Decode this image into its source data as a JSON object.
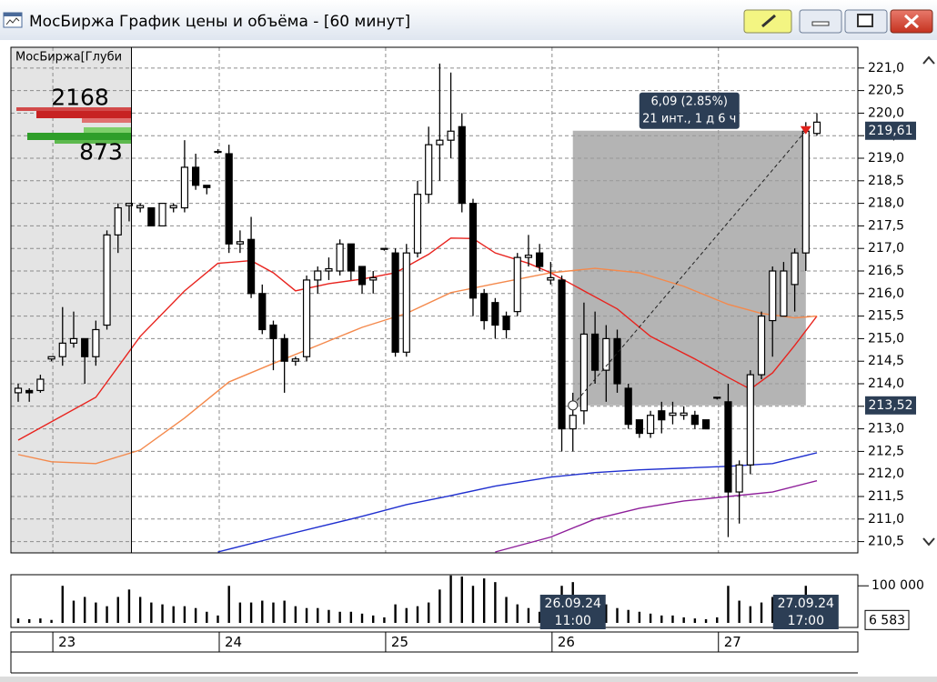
{
  "window": {
    "title": "МосБиржа График цены и объёма - [60 минут]"
  },
  "depth_panel": {
    "title": "МосБиржа[Глуби",
    "ask_volume": 2168,
    "bid_volume": 873
  },
  "chart_data": [
    {
      "type": "candlestick",
      "categories": [
        null,
        null,
        null,
        "23",
        null,
        null,
        null,
        null,
        null,
        null,
        null,
        null,
        null,
        null,
        null,
        null,
        null,
        null,
        "24",
        null,
        null,
        null,
        null,
        null,
        null,
        null,
        null,
        null,
        null,
        null,
        null,
        null,
        null,
        "25",
        null,
        null,
        null,
        null,
        null,
        null,
        null,
        null,
        null,
        null,
        null,
        null,
        null,
        null,
        "26",
        null,
        null,
        null,
        null,
        null,
        null,
        null,
        null,
        null,
        null,
        null,
        null,
        null,
        null,
        "27",
        null,
        null,
        null,
        null,
        null,
        null,
        null,
        null,
        null
      ],
      "open": [
        213.8,
        213.85,
        213.85,
        214.55,
        214.6,
        214.9,
        215.0,
        214.6,
        215.3,
        217.3,
        217.95,
        217.9,
        217.9,
        217.5,
        217.9,
        217.9,
        218.8,
        218.4,
        219.15,
        219.1,
        217.1,
        217.2,
        216.0,
        215.3,
        215.0,
        214.5,
        214.6,
        216.3,
        216.5,
        216.5,
        217.1,
        216.6,
        216.3,
        217.0,
        216.9,
        214.7,
        216.9,
        218.2,
        219.3,
        219.4,
        219.7,
        218.0,
        216.0,
        215.8,
        215.5,
        215.6,
        216.8,
        216.9,
        216.3,
        216.3,
        213.0,
        213.4,
        215.1,
        214.3,
        215.0,
        213.9,
        213.2,
        212.9,
        213.4,
        213.3,
        213.3,
        213.3,
        213.2,
        213.7,
        213.6,
        211.6,
        212.2,
        214.2,
        215.4,
        215.5,
        216.2,
        216.9,
        219.55
      ],
      "high": [
        214.0,
        213.9,
        214.2,
        214.6,
        215.7,
        215.6,
        215.0,
        215.4,
        217.4,
        218.0,
        218.0,
        218.0,
        217.9,
        218.0,
        218.0,
        219.4,
        219.1,
        218.4,
        219.2,
        219.3,
        217.4,
        217.7,
        216.2,
        215.4,
        215.1,
        214.6,
        216.4,
        216.6,
        216.8,
        217.2,
        217.1,
        216.6,
        216.5,
        217.0,
        217.0,
        217.1,
        218.5,
        219.7,
        221.1,
        220.9,
        220.0,
        218.1,
        216.1,
        215.9,
        215.6,
        216.9,
        217.3,
        217.1,
        216.7,
        216.4,
        213.8,
        215.8,
        215.6,
        215.3,
        215.2,
        214.0,
        213.2,
        213.4,
        213.6,
        213.6,
        213.5,
        213.4,
        213.2,
        213.7,
        214.0,
        212.3,
        214.3,
        215.6,
        216.6,
        216.7,
        217.0,
        219.8,
        220.0
      ],
      "low": [
        213.6,
        213.6,
        213.8,
        214.5,
        214.4,
        214.8,
        214.0,
        214.4,
        215.2,
        216.9,
        217.6,
        217.8,
        217.5,
        217.5,
        217.8,
        217.8,
        218.3,
        218.2,
        219.1,
        216.9,
        216.9,
        215.9,
        215.1,
        214.3,
        213.8,
        214.4,
        214.5,
        216.0,
        216.3,
        216.4,
        216.3,
        216.0,
        216.0,
        216.95,
        214.6,
        214.6,
        216.8,
        218.0,
        218.5,
        219.0,
        217.8,
        215.5,
        215.2,
        215.0,
        215.0,
        215.5,
        216.6,
        216.5,
        216.2,
        212.5,
        212.5,
        213.1,
        214.0,
        213.6,
        213.8,
        213.0,
        212.8,
        212.8,
        212.9,
        213.1,
        213.2,
        213.0,
        213.0,
        213.65,
        210.6,
        210.9,
        212.0,
        214.1,
        214.6,
        215.5,
        215.6,
        216.5,
        219.5
      ],
      "close": [
        213.9,
        213.8,
        214.1,
        214.6,
        214.9,
        215.0,
        214.6,
        215.2,
        217.3,
        217.9,
        218.0,
        217.95,
        217.5,
        218.0,
        217.95,
        218.8,
        218.4,
        218.35,
        219.15,
        217.1,
        217.15,
        216.0,
        215.2,
        215.0,
        214.5,
        214.55,
        216.3,
        216.5,
        216.55,
        217.1,
        216.5,
        216.2,
        216.35,
        217.0,
        214.7,
        216.9,
        218.2,
        219.3,
        219.4,
        219.6,
        218.0,
        215.9,
        215.4,
        215.3,
        215.2,
        216.8,
        216.85,
        216.6,
        216.35,
        213.0,
        213.3,
        215.1,
        214.3,
        215.0,
        214.0,
        213.1,
        212.9,
        213.3,
        213.2,
        213.35,
        213.35,
        213.1,
        213.0,
        213.7,
        211.6,
        212.2,
        214.2,
        215.5,
        216.5,
        216.5,
        216.9,
        219.6,
        219.8
      ],
      "up_color": "#ffffff",
      "down_color": "#000000",
      "series": [
        {
          "color": "#e8231e",
          "x": [
            0,
            7,
            11,
            15,
            18,
            21,
            23,
            25,
            28,
            31,
            34,
            37,
            39,
            41,
            43,
            46,
            48,
            51,
            54,
            57,
            61,
            64,
            66,
            68,
            70,
            72
          ],
          "values": [
            212.75,
            213.7,
            215.05,
            216.06,
            216.67,
            216.73,
            216.46,
            216.06,
            216.22,
            216.32,
            216.46,
            216.87,
            217.23,
            217.22,
            216.9,
            216.67,
            216.46,
            216.06,
            215.66,
            215.05,
            214.55,
            214.14,
            213.88,
            214.24,
            214.85,
            215.5
          ]
        },
        {
          "color": "#f4894c",
          "x": [
            0,
            3,
            7,
            11,
            15,
            19,
            23,
            27,
            31,
            35,
            39,
            43,
            48,
            52,
            56,
            60,
            64,
            67,
            70,
            72
          ],
          "values": [
            212.43,
            212.27,
            212.23,
            212.53,
            213.24,
            214.04,
            214.45,
            214.85,
            215.25,
            215.56,
            216.02,
            216.22,
            216.46,
            216.56,
            216.46,
            216.16,
            215.76,
            215.56,
            215.46,
            215.5
          ]
        },
        {
          "color": "#1f2fcf",
          "x": [
            18,
            23,
            27,
            31,
            35,
            39,
            43,
            48,
            52,
            56,
            60,
            64,
            68,
            72
          ],
          "values": [
            210.27,
            210.58,
            210.82,
            211.06,
            211.32,
            211.52,
            211.73,
            211.93,
            212.03,
            212.09,
            212.13,
            212.17,
            212.23,
            212.47
          ]
        },
        {
          "color": "#8e1f9a",
          "x": [
            43,
            48,
            52,
            56,
            60,
            64,
            68,
            72
          ],
          "values": [
            210.27,
            210.6,
            211.0,
            211.24,
            211.4,
            211.5,
            211.6,
            211.85
          ]
        }
      ],
      "ylim": [
        210.25,
        221.46
      ],
      "yticks": [
        {
          "value": 210.5,
          "label": "210,5"
        },
        {
          "value": 211,
          "label": "211,0"
        },
        {
          "value": 211.5,
          "label": "211,5"
        },
        {
          "value": 212,
          "label": "212,0"
        },
        {
          "value": 212.5,
          "label": "212,5"
        },
        {
          "value": 213,
          "label": "213,0"
        },
        {
          "value": 213.5,
          "label": "213,5"
        },
        {
          "value": 214,
          "label": "214,0"
        },
        {
          "value": 214.5,
          "label": "214,5"
        },
        {
          "value": 215,
          "label": "215,0"
        },
        {
          "value": 215.5,
          "label": "215,5"
        },
        {
          "value": 216,
          "label": "216,0"
        },
        {
          "value": 216.5,
          "label": "216,5"
        },
        {
          "value": 217,
          "label": "217,0"
        },
        {
          "value": 217.5,
          "label": "217,5"
        },
        {
          "value": 218,
          "label": "218,0"
        },
        {
          "value": 218.5,
          "label": "218,5"
        },
        {
          "value": 219,
          "label": "219,0"
        },
        {
          "value": 219.5,
          "label": "219,5"
        },
        {
          "value": 220,
          "label": "220,0"
        },
        {
          "value": 220.5,
          "label": "220,5"
        },
        {
          "value": 221,
          "label": "221,0"
        }
      ],
      "grid": true,
      "price_labels": [
        {
          "value": 219.61,
          "label": "219,61"
        },
        {
          "value": 213.52,
          "label": "213,52"
        }
      ],
      "measure": {
        "start": {
          "x": 50,
          "value": 213.52
        },
        "end": {
          "x": 71,
          "value": 219.61
        },
        "label": "6,09 (2.85%)",
        "sublabel": "21 инт., 1 д 6 ч"
      },
      "time_labels": [
        {
          "x": 50,
          "date": "26.09.24",
          "time": "11:00"
        },
        {
          "x": 71,
          "date": "27.09.24",
          "time": "17:00"
        }
      ]
    },
    {
      "type": "volume",
      "values": [
        12000,
        10000,
        12000,
        8000,
        100000,
        60000,
        70000,
        55000,
        45000,
        70000,
        90000,
        70000,
        55000,
        50000,
        45000,
        45000,
        40000,
        30000,
        20000,
        100000,
        55000,
        55000,
        60000,
        55000,
        60000,
        45000,
        40000,
        40000,
        35000,
        30000,
        30000,
        25000,
        20000,
        15000,
        50000,
        40000,
        45000,
        55000,
        90000,
        128000,
        125000,
        100000,
        120000,
        110000,
        70000,
        50000,
        40000,
        30000,
        35000,
        100000,
        110000,
        70000,
        60000,
        50000,
        40000,
        35000,
        30000,
        25000,
        20000,
        20000,
        15000,
        12000,
        10000,
        15000,
        100000,
        60000,
        45000,
        55000,
        70000,
        50000,
        60000,
        100000,
        6583
      ],
      "color": "#000000",
      "ylim": [
        0,
        130000
      ],
      "yticks": [
        {
          "value": 100000,
          "label": "100 000"
        }
      ],
      "last_value": {
        "value": 6583,
        "label": "6 583"
      }
    }
  ]
}
